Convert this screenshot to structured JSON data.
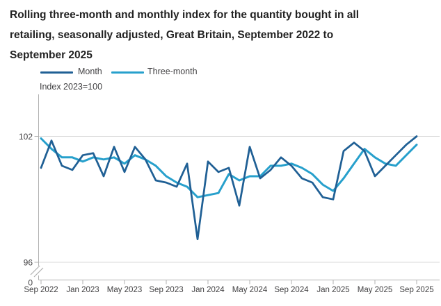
{
  "title": {
    "lines": [
      "Rolling three-month and monthly index for the quantity bought in all",
      "retailing, seasonally adjusted, Great Britain, September 2022 to",
      "September 2025"
    ]
  },
  "legend": {
    "items": [
      {
        "label": "Month",
        "color": "#206095"
      },
      {
        "label": "Three-month",
        "color": "#27A0CC"
      }
    ]
  },
  "y_axis": {
    "unit_label": "Index 2023=100",
    "tick_labels": [
      "102",
      "96",
      "0"
    ],
    "has_axis_break": true
  },
  "x_axis": {
    "tick_labels": [
      "Sep 2022",
      "Jan 2023",
      "May 2023",
      "Sep 2023",
      "Jan 2024",
      "May 2024",
      "Sep 2024",
      "Jan 2025",
      "May 2025",
      "Sep 2025"
    ]
  },
  "colors": {
    "month_line": "#206095",
    "three_month_line": "#27A0CC",
    "gridline": "#d9d9d9",
    "axis": "#b0b0b0",
    "tick_text": "#414042"
  },
  "chart_data": {
    "type": "line",
    "title": "Rolling three-month and monthly index for the quantity bought in all retailing, seasonally adjusted, Great Britain, September 2022 to September 2025",
    "ylabel": "Index 2023=100",
    "ylim_shown": [
      96,
      102
    ],
    "grid": "horizontal at 102 and 96, y-axis break between 96 and 0",
    "legend_position": "top-left",
    "x": [
      "Sep 2022",
      "Oct 2022",
      "Nov 2022",
      "Dec 2022",
      "Jan 2023",
      "Feb 2023",
      "Mar 2023",
      "Apr 2023",
      "May 2023",
      "Jun 2023",
      "Jul 2023",
      "Aug 2023",
      "Sep 2023",
      "Oct 2023",
      "Nov 2023",
      "Dec 2023",
      "Jan 2024",
      "Feb 2024",
      "Mar 2024",
      "Apr 2024",
      "May 2024",
      "Jun 2024",
      "Jul 2024",
      "Aug 2024",
      "Sep 2024",
      "Oct 2024",
      "Nov 2024",
      "Dec 2024",
      "Jan 2025",
      "Feb 2025",
      "Mar 2025",
      "Apr 2025",
      "May 2025",
      "Jun 2025",
      "Jul 2025",
      "Aug 2025",
      "Sep 2025"
    ],
    "x_tick_every": 4,
    "series": [
      {
        "name": "Month",
        "color": "#206095",
        "values": [
          100.5,
          101.8,
          100.6,
          100.4,
          101.1,
          101.2,
          100.1,
          101.5,
          100.3,
          101.5,
          100.9,
          99.9,
          99.8,
          99.6,
          100.7,
          97.1,
          100.8,
          100.3,
          100.5,
          98.7,
          101.5,
          100.0,
          100.4,
          101.0,
          100.6,
          100.0,
          99.8,
          99.1,
          99.0,
          101.3,
          101.7,
          101.3,
          100.1,
          100.6,
          101.1,
          101.6,
          102.0
        ]
      },
      {
        "name": "Three-month",
        "color": "#27A0CC",
        "values": [
          101.9,
          101.4,
          101.0,
          101.0,
          100.8,
          101.0,
          100.9,
          101.0,
          100.7,
          101.1,
          100.9,
          100.6,
          100.1,
          99.8,
          99.6,
          99.1,
          99.2,
          99.3,
          100.2,
          99.9,
          100.1,
          100.1,
          100.6,
          100.6,
          100.7,
          100.5,
          100.2,
          99.7,
          99.4,
          100.0,
          100.7,
          101.4,
          101.0,
          100.7,
          100.6,
          101.1,
          101.6
        ]
      }
    ]
  }
}
